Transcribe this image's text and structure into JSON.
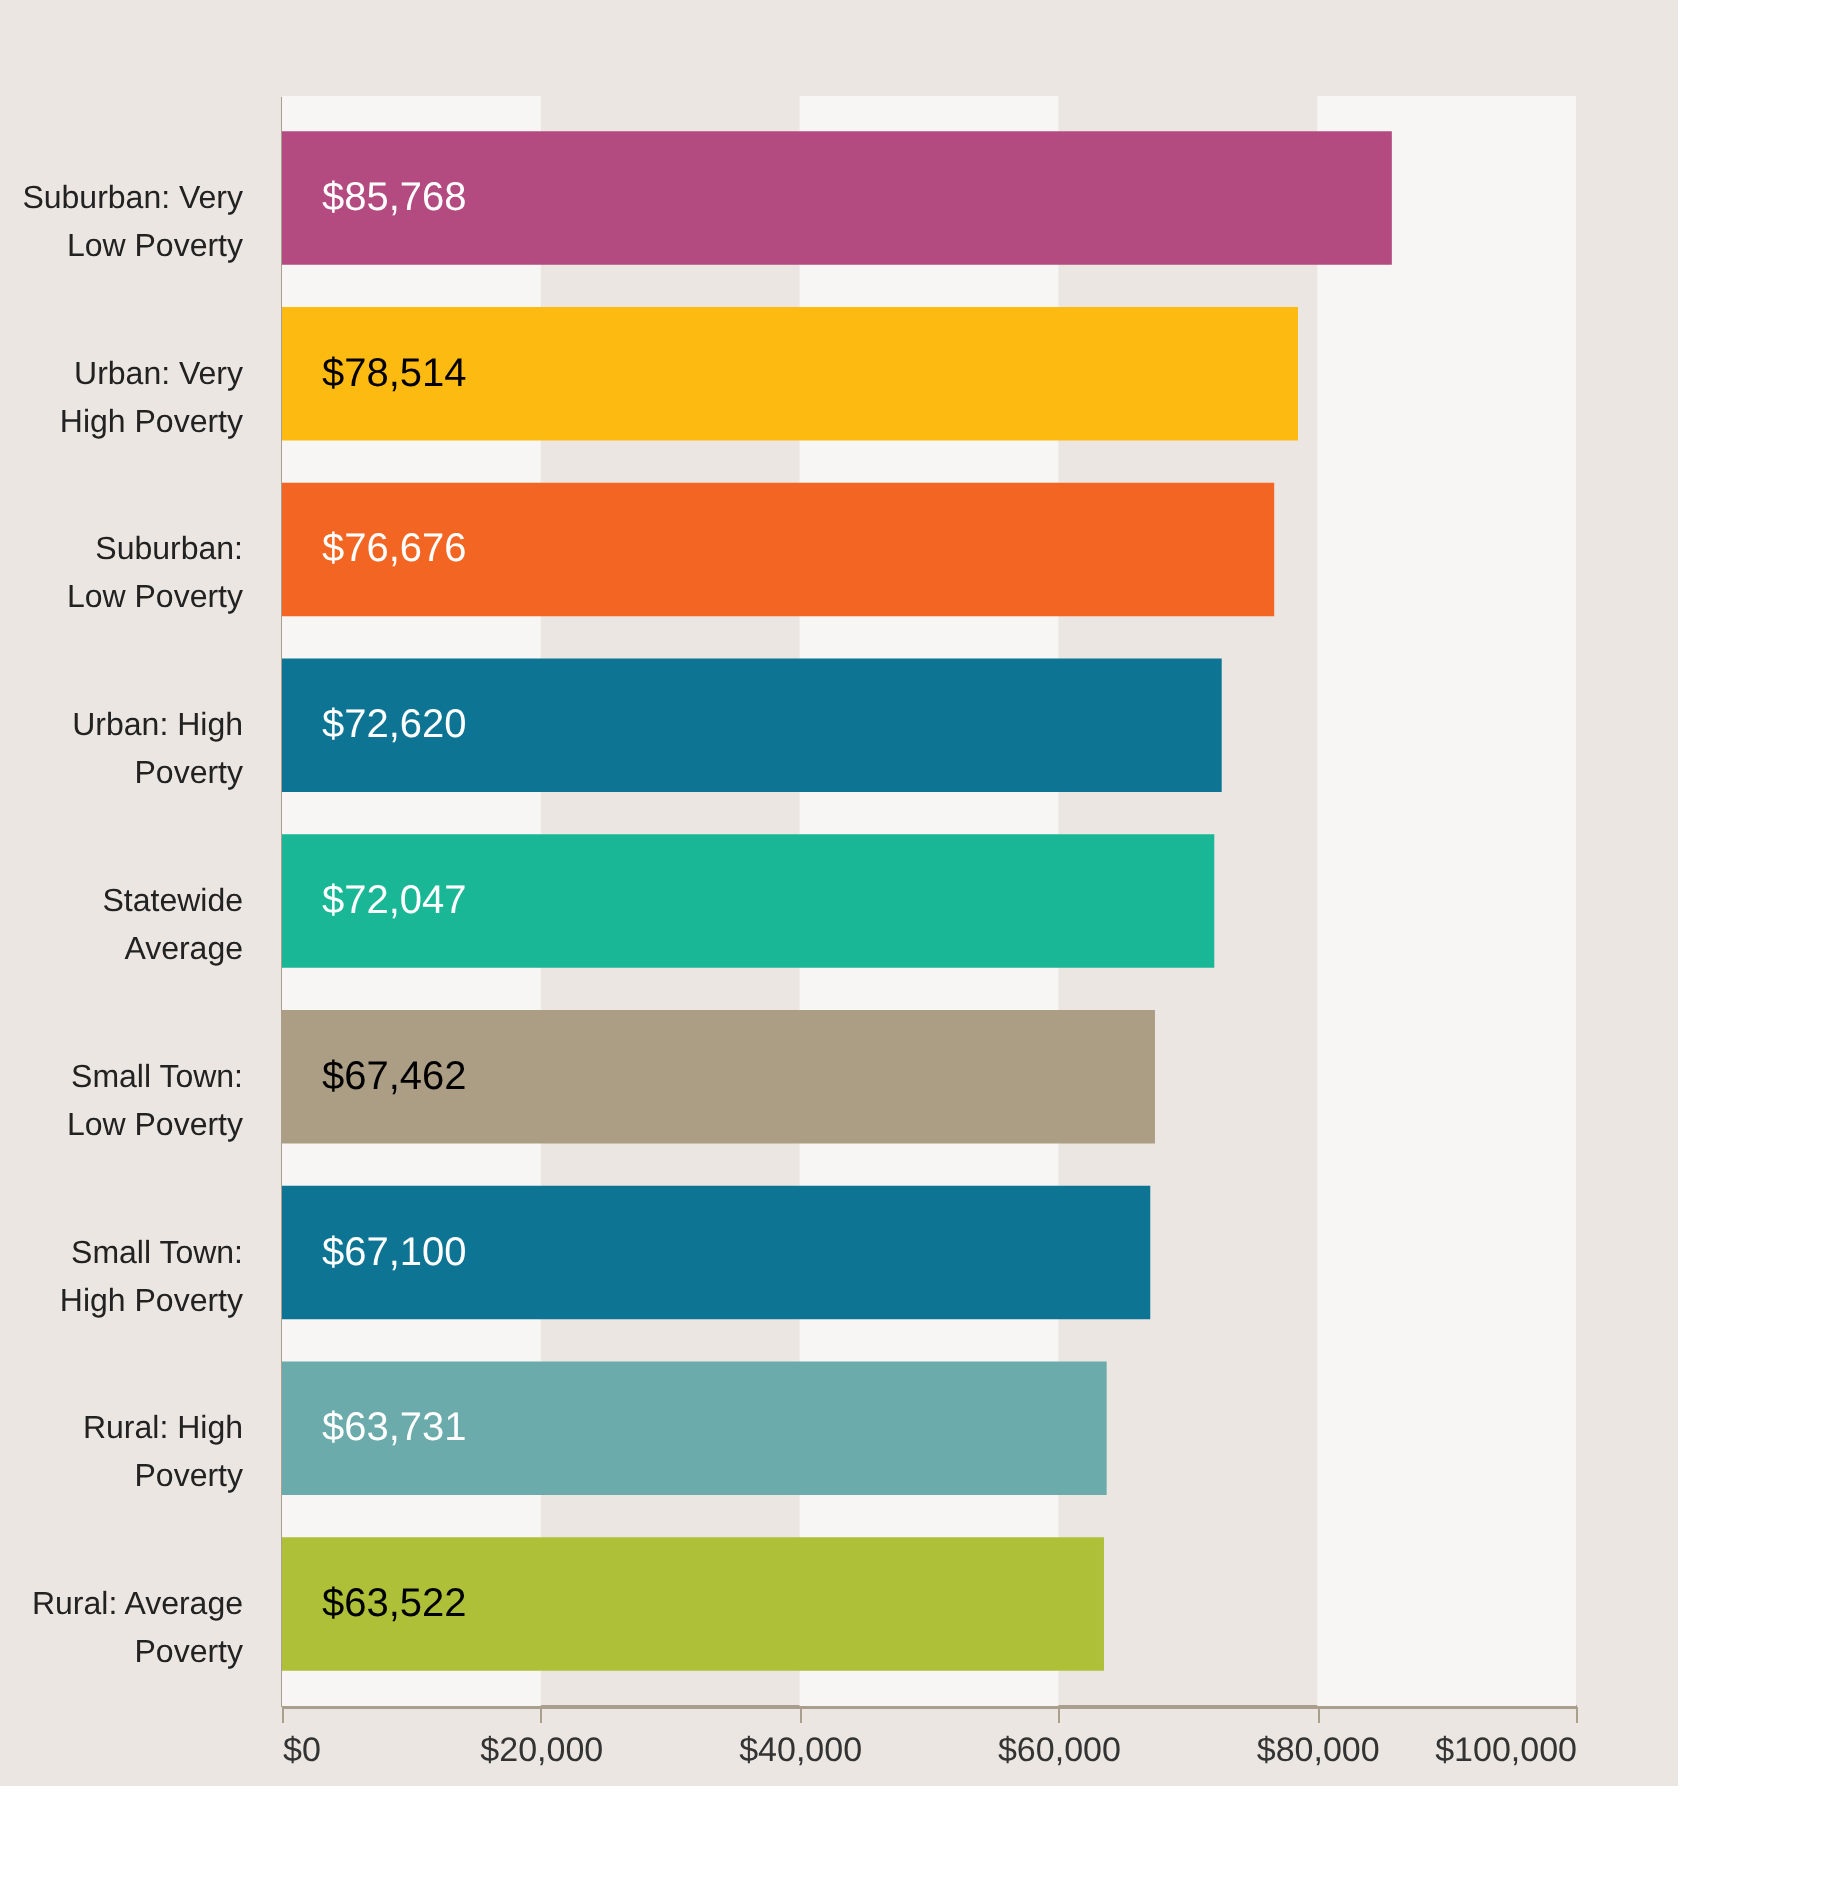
{
  "chart_data": {
    "type": "bar",
    "orientation": "horizontal",
    "categories": [
      "Suburban: Very\nLow Poverty",
      "Urban: Very\nHigh Poverty",
      "Suburban:\nLow Poverty",
      "Urban: High\nPoverty",
      "Statewide\nAverage",
      "Small Town:\nLow Poverty",
      "Small Town:\nHigh Poverty",
      "Rural: High\nPoverty",
      "Rural: Average\nPoverty"
    ],
    "values": [
      85768,
      78514,
      76676,
      72620,
      72047,
      67462,
      67100,
      63731,
      63522
    ],
    "colors": [
      "#b44b80",
      "#fdbb12",
      "#f26522",
      "#0e7494",
      "#19b795",
      "#ac9e85",
      "#0e7494",
      "#6cabac",
      "#aebf38"
    ],
    "value_labels": [
      "$85,768",
      "$78,514",
      "$76,676",
      "$72,620",
      "$72,047",
      "$67,462",
      "$67,100",
      "$63,731",
      "$63,522"
    ],
    "xlim": [
      0,
      100000
    ],
    "xticks": [
      {
        "value": 0,
        "label": "$0"
      },
      {
        "value": 20000,
        "label": "$20,000"
      },
      {
        "value": 40000,
        "label": "$40,000"
      },
      {
        "value": 60000,
        "label": "$60,000"
      },
      {
        "value": 80000,
        "label": "$80,000"
      },
      {
        "value": 100000,
        "label": "$100,000"
      }
    ],
    "bands": [
      {
        "axis": "x",
        "from": 0,
        "to": 20000,
        "color": "#f7f6f4"
      },
      {
        "axis": "x",
        "from": 40000,
        "to": 60000,
        "color": "#f7f6f4"
      },
      {
        "axis": "x",
        "from": 80000,
        "to": 100000,
        "color": "#f7f6f4"
      }
    ],
    "grid": false
  }
}
